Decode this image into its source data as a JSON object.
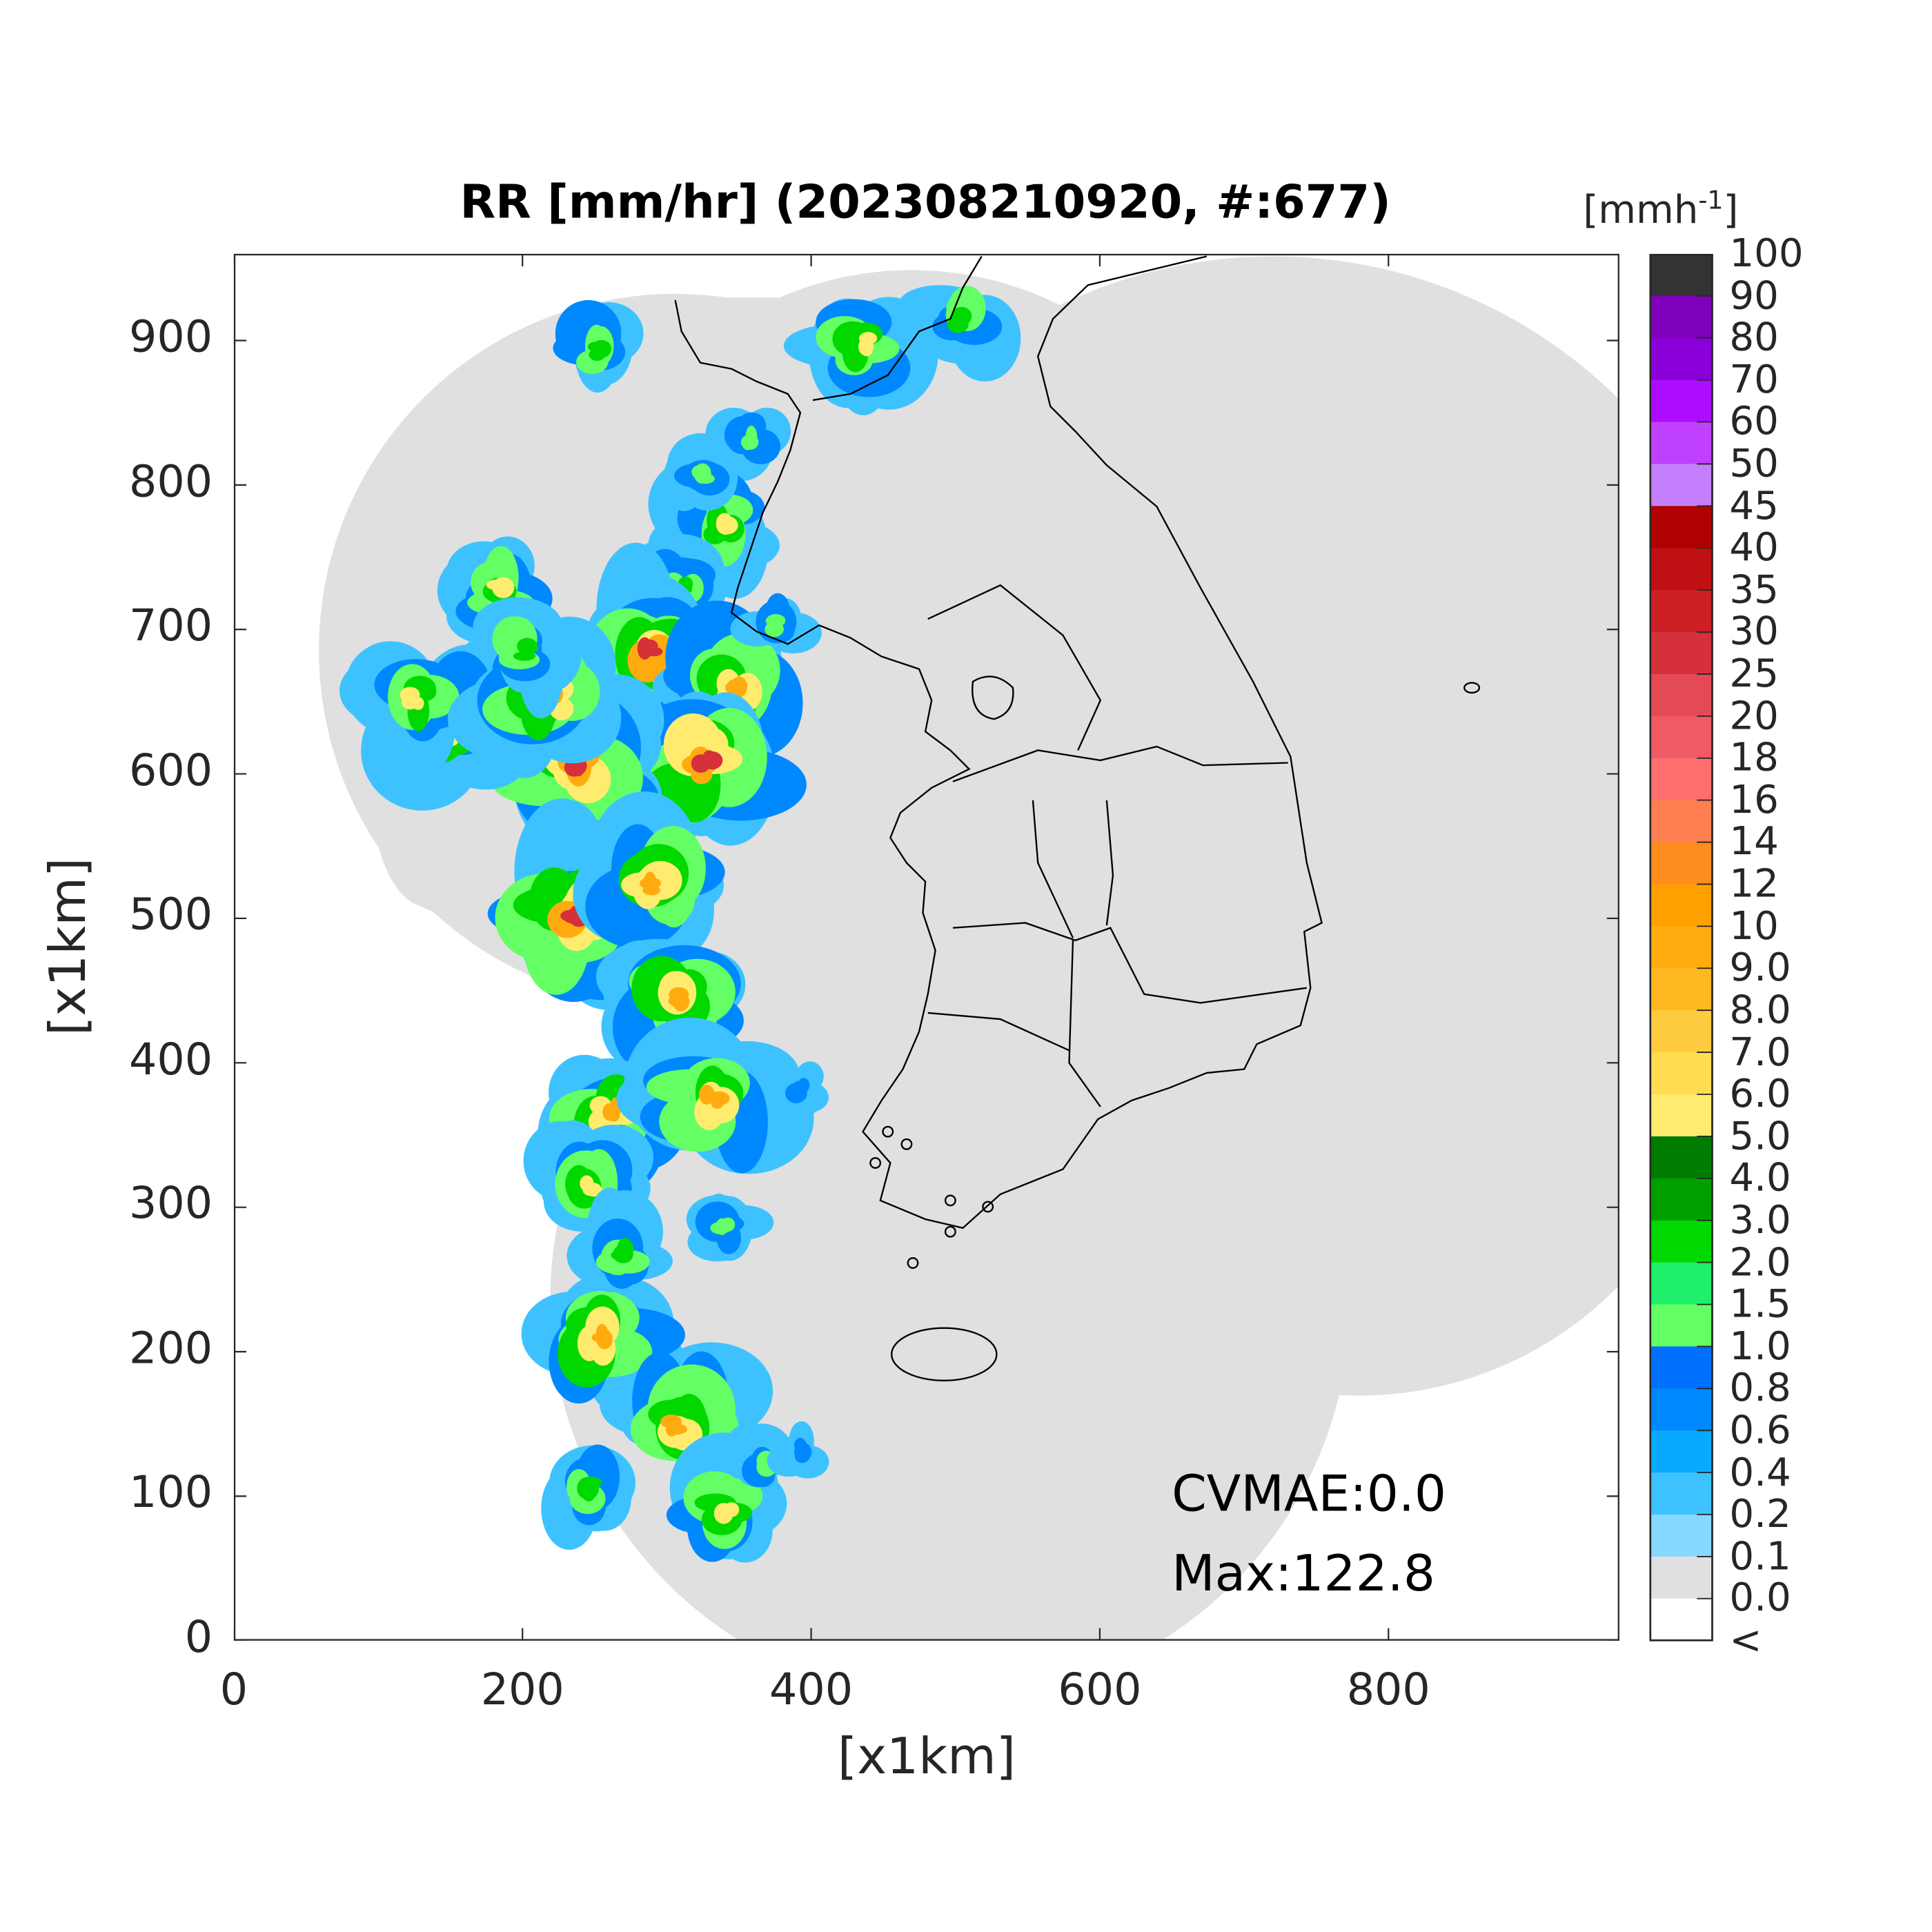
{
  "chart_data": {
    "type": "heatmap",
    "title": "RR [mm/hr] (202308210920, #:677)",
    "xlabel": "[x1km]",
    "ylabel": "[x1km]",
    "xlim": [
      0,
      960
    ],
    "ylim": [
      0,
      960
    ],
    "xticks": [
      "0",
      "200",
      "400",
      "600",
      "800"
    ],
    "yticks": [
      "0",
      "100",
      "200",
      "300",
      "400",
      "500",
      "600",
      "700",
      "800",
      "900"
    ],
    "grid": false,
    "colorbar": {
      "unit_label": "[mmh",
      "unit_exponent": "-1",
      "unit_close": "]",
      "position": "right",
      "labels": [
        "100",
        "90",
        "80",
        "70",
        "60",
        "50",
        "45",
        "40",
        "35",
        "30",
        "25",
        "20",
        "18",
        "16",
        "14",
        "12",
        "10",
        "9.0",
        "8.0",
        "7.0",
        "6.0",
        "5.0",
        "4.0",
        "3.0",
        "2.0",
        "1.5",
        "1.0",
        "0.8",
        "0.6",
        "0.4",
        "0.2",
        "0.1",
        "0.0",
        "<"
      ],
      "colors": [
        "#333333",
        "#7e00bb",
        "#8a00d8",
        "#ac0cff",
        "#c040ff",
        "#c47fff",
        "#b00000",
        "#bf1014",
        "#cc1f26",
        "#d6303a",
        "#e44a55",
        "#f05a65",
        "#ff6e6e",
        "#ff7f50",
        "#ff8c1e",
        "#ffa000",
        "#ffab10",
        "#ffb820",
        "#ffcc40",
        "#ffdc50",
        "#ffec6e",
        "#007c00",
        "#009f00",
        "#00d800",
        "#1ef06a",
        "#64ff64",
        "#0070ff",
        "#0088ff",
        "#08aaff",
        "#3ec2ff",
        "#86d8ff",
        "#e0e0e0",
        "#ffffff"
      ]
    },
    "annotations": {
      "cvmae": "CVMAE:0.0",
      "max": "Max:122.8"
    },
    "coverage_color": "#e0e0e0",
    "coastline_color": "#000000"
  }
}
